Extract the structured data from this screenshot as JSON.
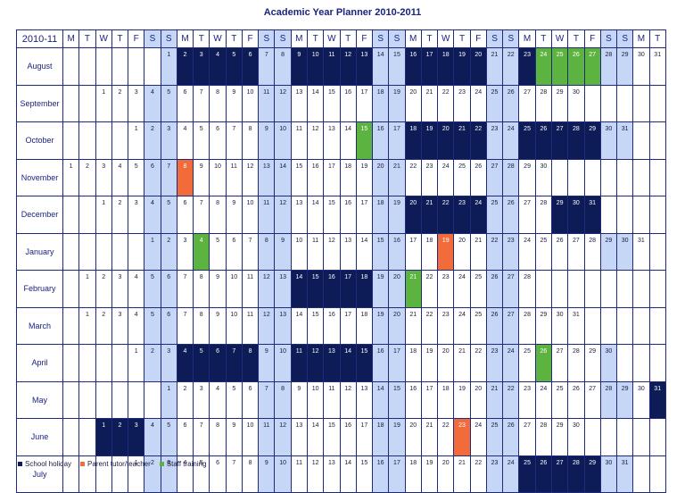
{
  "title": "Academic Year Planner 2010-2011",
  "corner_label": "2010-11",
  "day_headers": [
    "M",
    "T",
    "W",
    "T",
    "F",
    "S",
    "S",
    "M",
    "T",
    "W",
    "T",
    "F",
    "S",
    "S",
    "M",
    "T",
    "W",
    "T",
    "F",
    "S",
    "S",
    "M",
    "T",
    "W",
    "T",
    "F",
    "S",
    "S",
    "M",
    "T",
    "W",
    "T",
    "F",
    "S",
    "S",
    "M",
    "T"
  ],
  "months": [
    {
      "name": "August",
      "start": 6,
      "days": 31,
      "holidays": [
        2,
        3,
        4,
        5,
        6,
        9,
        10,
        11,
        12,
        13,
        16,
        17,
        18,
        19,
        20,
        23
      ],
      "parent": [],
      "staff": [
        24,
        25,
        26,
        27
      ]
    },
    {
      "name": "September",
      "start": 2,
      "days": 30,
      "holidays": [],
      "parent": [],
      "staff": []
    },
    {
      "name": "October",
      "start": 4,
      "days": 31,
      "holidays": [
        18,
        19,
        20,
        21,
        22,
        25,
        26,
        27,
        28,
        29
      ],
      "parent": [],
      "staff": [
        15
      ]
    },
    {
      "name": "November",
      "start": 0,
      "days": 30,
      "holidays": [],
      "parent": [
        8
      ],
      "staff": []
    },
    {
      "name": "December",
      "start": 2,
      "days": 31,
      "holidays": [
        20,
        21,
        22,
        23,
        24,
        29,
        30,
        31
      ],
      "parent": [],
      "staff": []
    },
    {
      "name": "January",
      "start": 5,
      "days": 31,
      "holidays": [],
      "parent": [
        19
      ],
      "staff": [
        4
      ]
    },
    {
      "name": "February",
      "start": 1,
      "days": 28,
      "holidays": [
        14,
        15,
        16,
        17,
        18
      ],
      "parent": [],
      "staff": [
        21
      ]
    },
    {
      "name": "March",
      "start": 1,
      "days": 31,
      "holidays": [],
      "parent": [],
      "staff": []
    },
    {
      "name": "April",
      "start": 4,
      "days": 30,
      "holidays": [
        4,
        5,
        6,
        7,
        8,
        11,
        12,
        13,
        14,
        15
      ],
      "parent": [],
      "staff": [
        26
      ]
    },
    {
      "name": "May",
      "start": 6,
      "days": 31,
      "holidays": [
        31
      ],
      "parent": [],
      "staff": []
    },
    {
      "name": "June",
      "start": 2,
      "days": 30,
      "holidays": [
        1,
        2,
        3
      ],
      "parent": [
        23
      ],
      "staff": []
    },
    {
      "name": "July",
      "start": 4,
      "days": 31,
      "holidays": [
        25,
        26,
        27,
        28,
        29
      ],
      "parent": [],
      "staff": []
    }
  ],
  "legend": {
    "holiday_label": "School holiday",
    "parent_label": "Parent tutor/teacher",
    "staff_label": "Staff training"
  },
  "colors": {
    "holiday": "#0d1b57",
    "parent": "#f26b3a",
    "staff": "#5cb33f",
    "weekend": "#c5d6f7"
  }
}
